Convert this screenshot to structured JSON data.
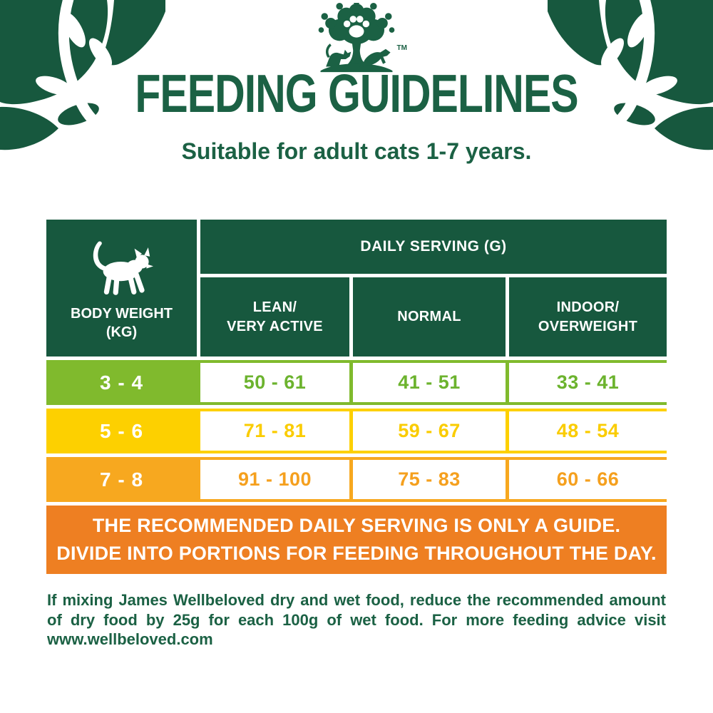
{
  "brand": {
    "trademark": "TM",
    "colors": {
      "dark_green": "#17583E",
      "text_green": "#1B6144",
      "lime": "#80BA2D",
      "yellow": "#FDD000",
      "amber": "#F7A81F",
      "notice_orange": "#EE7F22"
    }
  },
  "header": {
    "title": "FEEDING GUIDELINES",
    "subtitle": "Suitable for adult cats 1-7 years."
  },
  "table": {
    "body_weight_header": "BODY WEIGHT\n(KG)",
    "daily_serving_header": "DAILY SERVING (G)",
    "columns": [
      "LEAN/\nVERY ACTIVE",
      "NORMAL",
      "INDOOR/\nOVERWEIGHT"
    ],
    "rows": [
      {
        "weight": "3 - 4",
        "values": [
          "50 - 61",
          "41 - 51",
          "33 - 41"
        ],
        "color": "#80BA2D",
        "text_color": "#6CB32E"
      },
      {
        "weight": "5 - 6",
        "values": [
          "71 - 81",
          "59 - 67",
          "48 - 54"
        ],
        "color": "#FDD000",
        "text_color": "#FACC00"
      },
      {
        "weight": "7 - 8",
        "values": [
          "91 - 100",
          "75 - 83",
          "60 - 66"
        ],
        "color": "#F7A81F",
        "text_color": "#F5A01E"
      }
    ]
  },
  "notice": {
    "line1": "THE RECOMMENDED DAILY SERVING IS ONLY A GUIDE.",
    "line2": "DIVIDE INTO PORTIONS FOR FEEDING THROUGHOUT THE DAY."
  },
  "footer": {
    "text": "If mixing James Wellbeloved dry and wet food, reduce the recommended amount of dry food by 25g for each 100g of wet food. For more feeding advice visit www.wellbeloved.com"
  },
  "chart_data": {
    "type": "table",
    "title": "FEEDING GUIDELINES",
    "columns": [
      "BODY WEIGHT (KG)",
      "LEAN/VERY ACTIVE",
      "NORMAL",
      "INDOOR/OVERWEIGHT"
    ],
    "unit": "DAILY SERVING (G)",
    "rows": [
      [
        "3 - 4",
        "50 - 61",
        "41 - 51",
        "33 - 41"
      ],
      [
        "5 - 6",
        "71 - 81",
        "59 - 67",
        "48 - 54"
      ],
      [
        "7 - 8",
        "91 - 100",
        "75 - 83",
        "60 - 66"
      ]
    ]
  }
}
